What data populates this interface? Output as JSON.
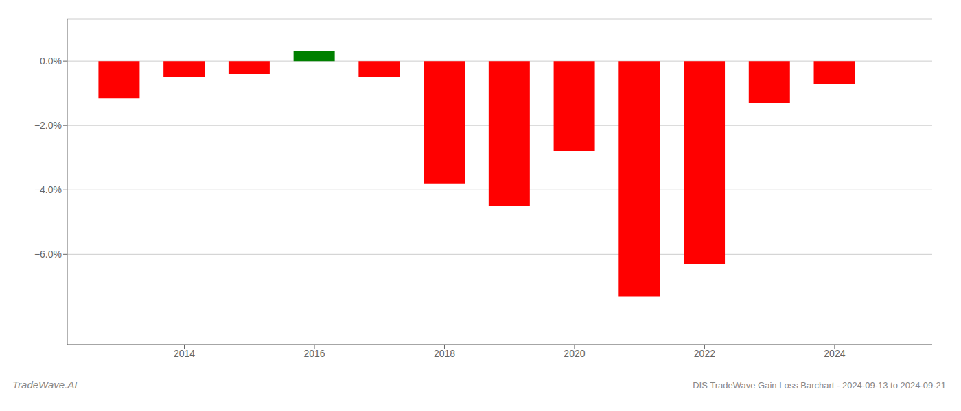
{
  "chart_data": {
    "type": "bar",
    "title": "DIS TradeWave Gain Loss Barchart - 2024-09-13 to 2024-09-21",
    "annotations": [
      "TradeWave.AI"
    ],
    "x": [
      2013,
      2014,
      2015,
      2016,
      2017,
      2018,
      2019,
      2020,
      2021,
      2022,
      2023,
      2024
    ],
    "values": [
      -0.0115,
      -0.005,
      -0.004,
      0.003,
      -0.005,
      -0.038,
      -0.045,
      -0.028,
      -0.073,
      -0.063,
      -0.013,
      -0.007
    ],
    "colors": [
      "#ff0000",
      "#ff0000",
      "#ff0000",
      "#008000",
      "#ff0000",
      "#ff0000",
      "#ff0000",
      "#ff0000",
      "#ff0000",
      "#ff0000",
      "#ff0000",
      "#ff0000"
    ],
    "xlim": [
      2012.2,
      2025.5
    ],
    "xticks": [
      2014,
      2016,
      2018,
      2020,
      2022,
      2024
    ],
    "ylim": [
      -0.088,
      0.013
    ],
    "yticks": [
      {
        "value": -0.06,
        "label": "−6.0%"
      },
      {
        "value": -0.04,
        "label": "−4.0%"
      },
      {
        "value": -0.02,
        "label": "−2.0%"
      },
      {
        "value": 0.0,
        "label": "0.0%"
      }
    ],
    "grid": true
  }
}
